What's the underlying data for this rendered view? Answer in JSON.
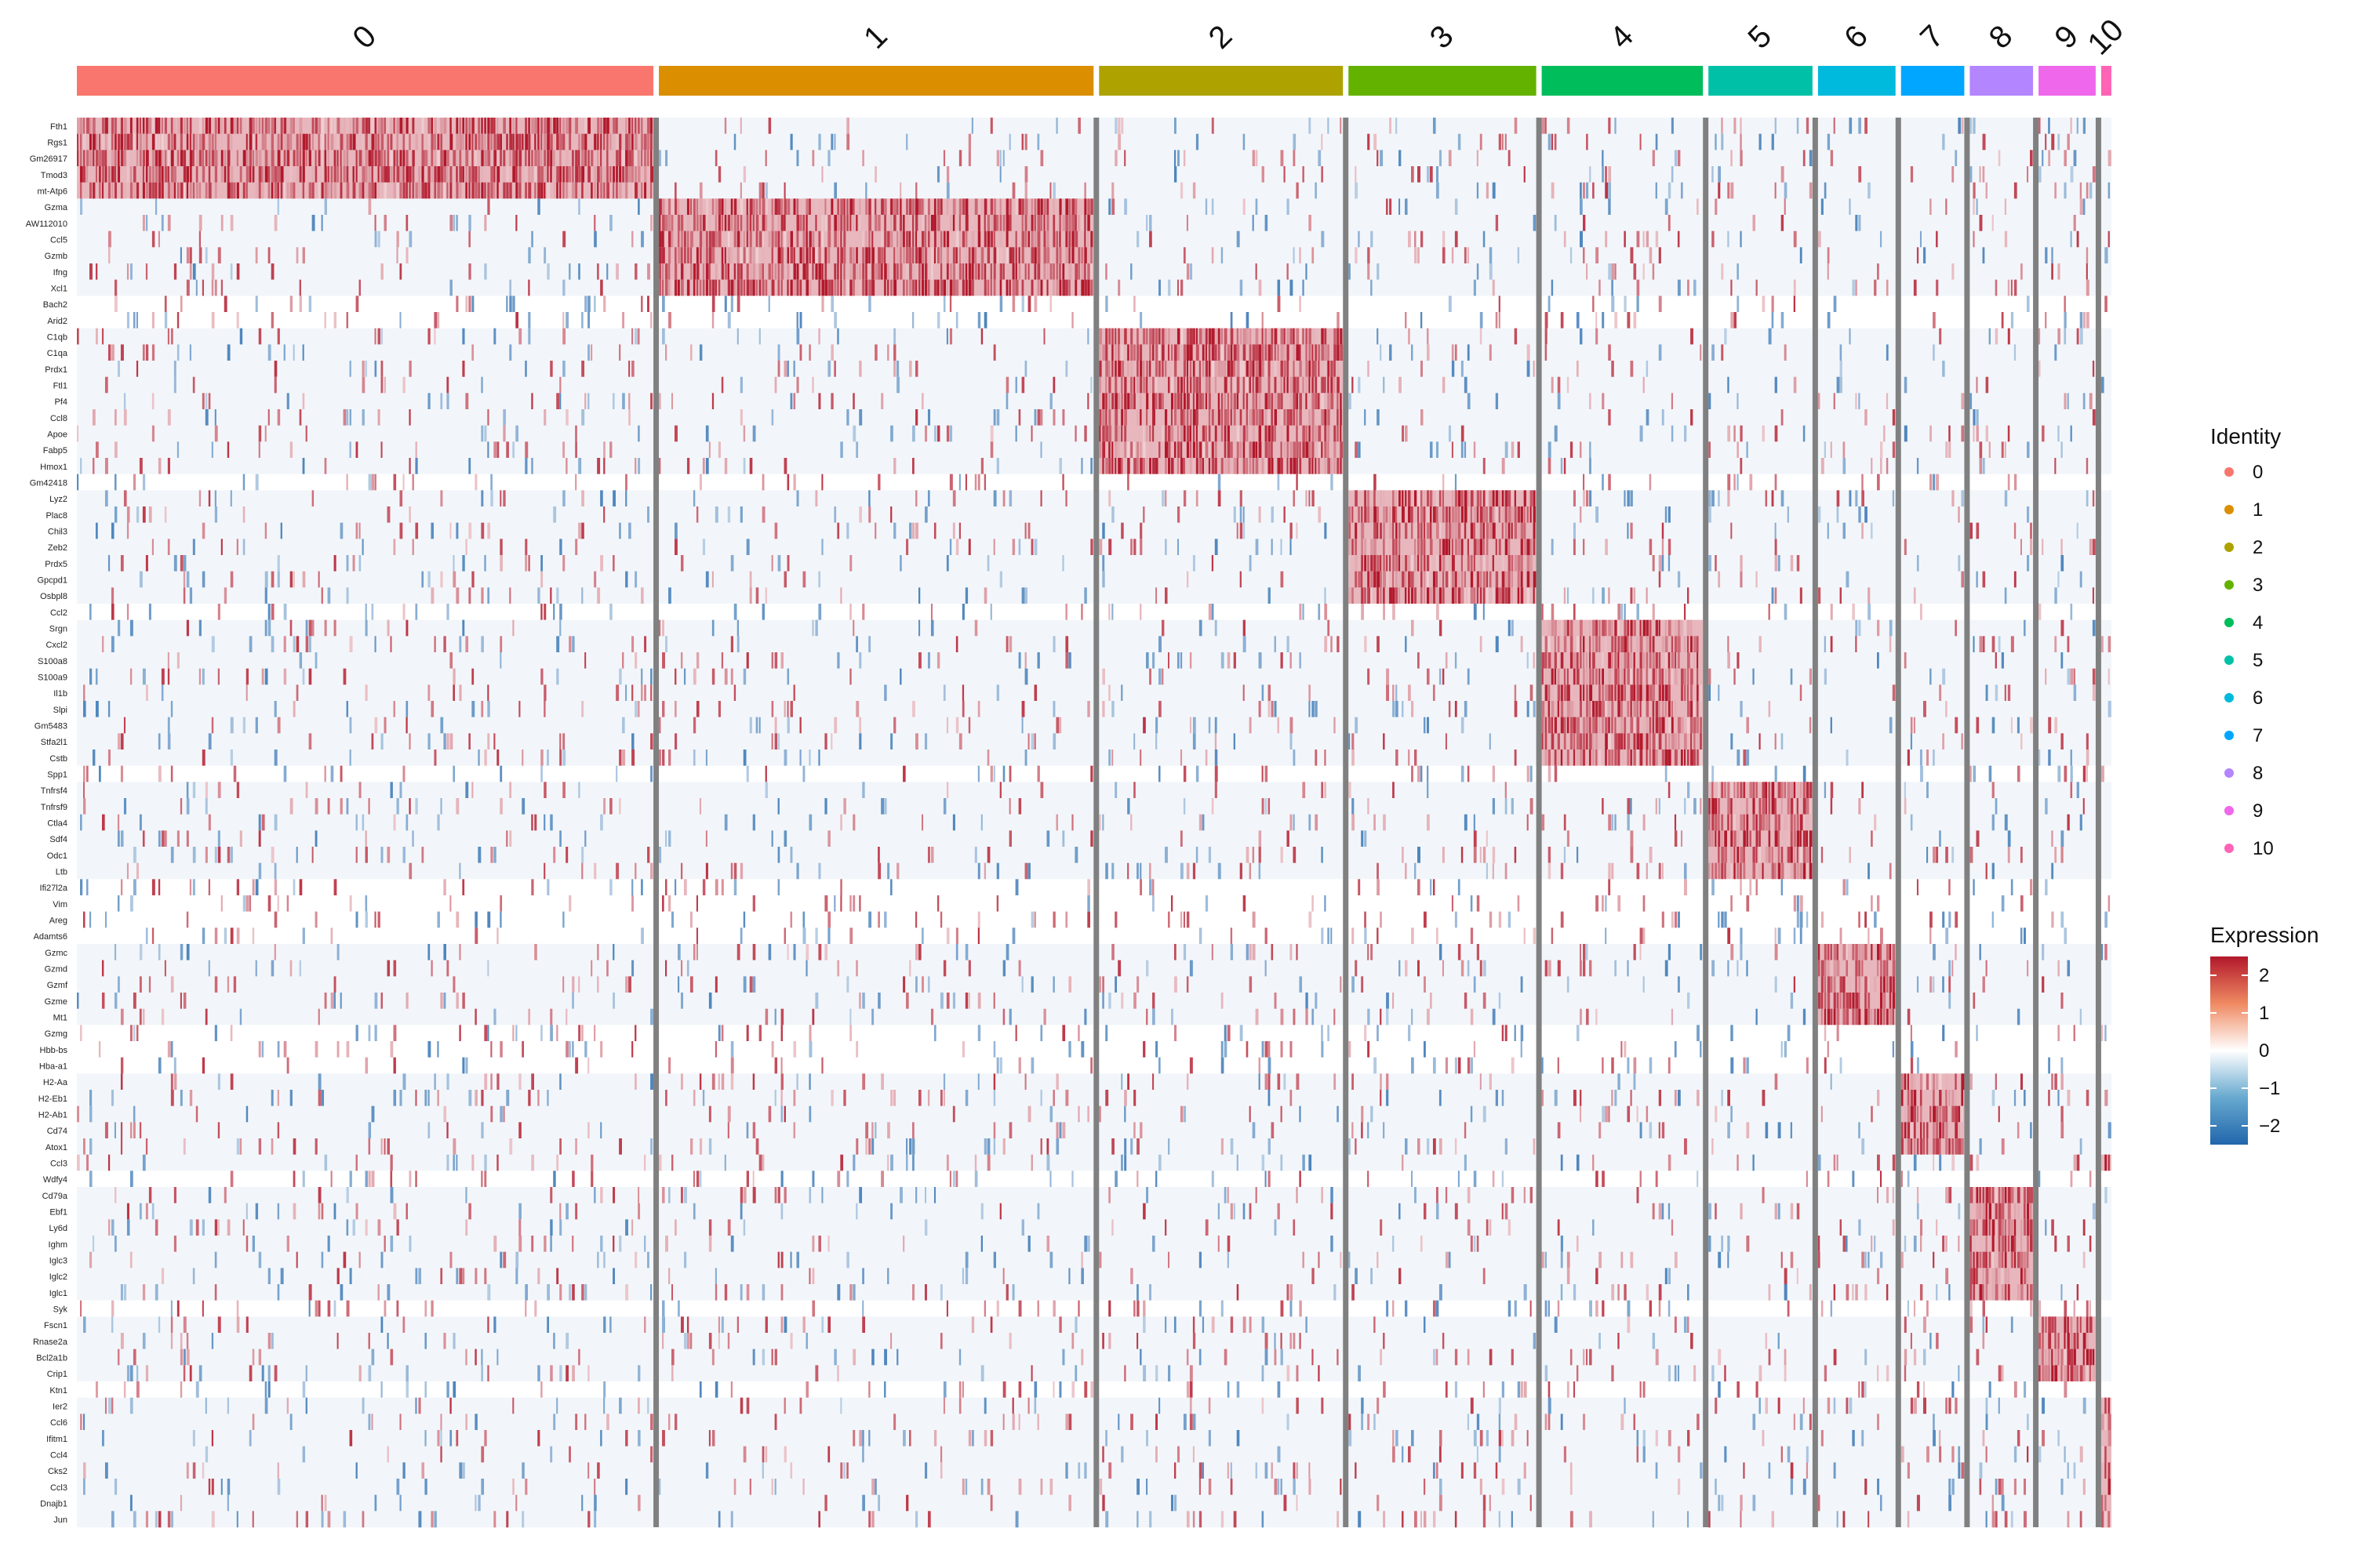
{
  "chart_data": {
    "type": "heatmap",
    "clusters": [
      "0",
      "1",
      "2",
      "3",
      "4",
      "5",
      "6",
      "7",
      "8",
      "9",
      "10"
    ],
    "cluster_cell_fraction": [
      0.2825,
      0.213,
      0.1195,
      0.092,
      0.079,
      0.051,
      0.038,
      0.031,
      0.031,
      0.028,
      0.005
    ],
    "genes": [
      "Fth1",
      "Rgs1",
      "Gm26917",
      "Tmod3",
      "mt-Atp6",
      "Gzma",
      "AW112010",
      "Ccl5",
      "Gzmb",
      "Ifng",
      "Xcl1",
      "Bach2",
      "Arid2",
      "C1qb",
      "C1qa",
      "Prdx1",
      "Ftl1",
      "Pf4",
      "Ccl8",
      "Apoe",
      "Fabp5",
      "Hmox1",
      "Gm42418",
      "Lyz2",
      "Plac8",
      "Chil3",
      "Zeb2",
      "Prdx5",
      "Gpcpd1",
      "Osbpl8",
      "Ccl2",
      "Srgn",
      "Cxcl2",
      "S100a8",
      "S100a9",
      "Il1b",
      "Slpi",
      "Gm5483",
      "Stfa2l1",
      "Cstb",
      "Spp1",
      "Tnfrsf4",
      "Tnfrsf9",
      "Ctla4",
      "Sdf4",
      "Odc1",
      "Ltb",
      "Ifi27l2a",
      "Vim",
      "Areg",
      "Adamts6",
      "Gzmc",
      "Gzmd",
      "Gzmf",
      "Gzme",
      "Mt1",
      "Gzmg",
      "Hbb-bs",
      "Hba-a1",
      "H2-Aa",
      "H2-Eb1",
      "H2-Ab1",
      "Cd74",
      "Atox1",
      "Ccl3",
      "Wdfy4",
      "Cd79a",
      "Ebf1",
      "Ly6d",
      "Ighm",
      "Iglc3",
      "Iglc2",
      "Iglc1",
      "Syk",
      "Fscn1",
      "Rnase2a",
      "Bcl2a1b",
      "Crip1",
      "Ktn1",
      "Ier2",
      "Ccl6",
      "Ifitm1",
      "Ccl4",
      "Cks2",
      "Ccl3",
      "Dnajb1",
      "Jun"
    ],
    "marker_blocks": [
      {
        "cluster": "0",
        "genes": [
          "Fth1",
          "Rgs1",
          "Gm26917",
          "Tmod3",
          "mt-Atp6"
        ]
      },
      {
        "cluster": "1",
        "genes": [
          "Gzma",
          "AW112010",
          "Ccl5",
          "Gzmb",
          "Ifng",
          "Xcl1"
        ]
      },
      {
        "cluster": "2",
        "genes": [
          "C1qb",
          "C1qa",
          "Prdx1",
          "Ftl1",
          "Pf4",
          "Ccl8",
          "Apoe",
          "Fabp5",
          "Hmox1"
        ]
      },
      {
        "cluster": "3",
        "genes": [
          "Lyz2",
          "Plac8",
          "Chil3",
          "Zeb2",
          "Prdx5",
          "Gpcpd1",
          "Osbpl8"
        ]
      },
      {
        "cluster": "4",
        "genes": [
          "Srgn",
          "Cxcl2",
          "S100a8",
          "S100a9",
          "Il1b",
          "Slpi",
          "Gm5483",
          "Stfa2l1",
          "Cstb"
        ]
      },
      {
        "cluster": "5",
        "genes": [
          "Tnfrsf4",
          "Tnfrsf9",
          "Ctla4",
          "Sdf4",
          "Odc1",
          "Ltb"
        ]
      },
      {
        "cluster": "6",
        "genes": [
          "Gzmc",
          "Gzmd",
          "Gzmf",
          "Gzme",
          "Mt1"
        ]
      },
      {
        "cluster": "7",
        "genes": [
          "H2-Aa",
          "H2-Eb1",
          "H2-Ab1",
          "Cd74",
          "Atox1"
        ]
      },
      {
        "cluster": "8",
        "genes": [
          "Cd79a",
          "Ebf1",
          "Ly6d",
          "Ighm",
          "Iglc3",
          "Iglc2",
          "Iglc1"
        ]
      },
      {
        "cluster": "9",
        "genes": [
          "Fscn1",
          "Rnase2a",
          "Bcl2a1b",
          "Crip1"
        ]
      },
      {
        "cluster": "10",
        "genes": [
          "Ier2",
          "Ccl6",
          "Ifitm1",
          "Ccl4",
          "Cks2",
          "Ccl3",
          "Dnajb1",
          "Jun"
        ]
      }
    ],
    "color_scale": {
      "min": -2.5,
      "max": 2.5,
      "ticks": [
        2,
        1,
        0,
        -1,
        -2
      ],
      "low": "#2166ac",
      "mid": "#ffffff",
      "high": "#b2182b"
    },
    "identity_colors": [
      "#F8766D",
      "#DB8E00",
      "#AEA200",
      "#64B200",
      "#00BD5C",
      "#00C1A7",
      "#00BADE",
      "#00A6FF",
      "#B385FF",
      "#EF67EB",
      "#FF63B6"
    ],
    "legend": {
      "identity_title": "Identity",
      "expression_title": "Expression",
      "position": "right"
    }
  }
}
